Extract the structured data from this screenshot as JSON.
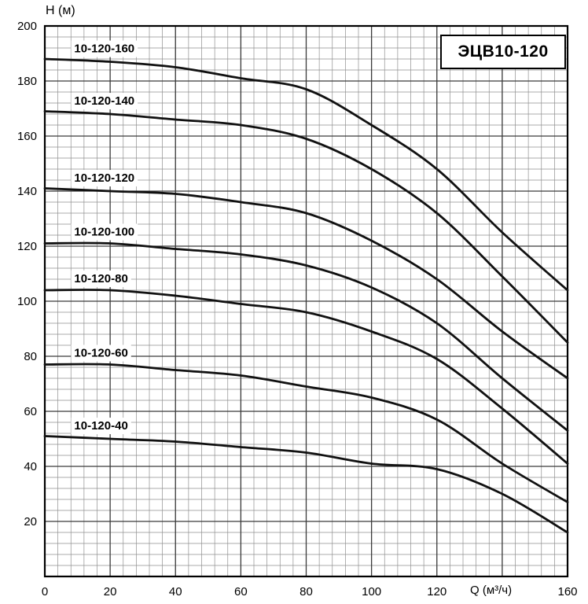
{
  "header": {
    "title_box": "ЭЦВ10-120"
  },
  "axes": {
    "y_title": "H (м)",
    "x_title": "Q (м³/ч)"
  },
  "chart_data": {
    "type": "line",
    "title": "ЭЦВ10-120",
    "xlabel": "Q (м³/ч)",
    "ylabel": "H (м)",
    "x": [
      0,
      20,
      40,
      60,
      80,
      100,
      120,
      140,
      160
    ],
    "series": [
      {
        "name": "10-120-160",
        "values": [
          188,
          187,
          185,
          181,
          177,
          164,
          148,
          125,
          104
        ]
      },
      {
        "name": "10-120-140",
        "values": [
          169,
          168,
          166,
          164,
          159,
          148,
          132,
          109,
          85
        ]
      },
      {
        "name": "10-120-120",
        "values": [
          141,
          140,
          139,
          136,
          132,
          122,
          108,
          89,
          72
        ]
      },
      {
        "name": "10-120-100",
        "values": [
          121,
          121,
          119,
          117,
          113,
          105,
          92,
          72,
          53
        ]
      },
      {
        "name": "10-120-80",
        "values": [
          104,
          104,
          102,
          99,
          96,
          89,
          79,
          61,
          41
        ]
      },
      {
        "name": "10-120-60",
        "values": [
          77,
          77,
          75,
          73,
          69,
          65,
          57,
          41,
          27
        ]
      },
      {
        "name": "10-120-40",
        "values": [
          51,
          50,
          49,
          47,
          45,
          41,
          39,
          30,
          16
        ]
      }
    ],
    "xlim": [
      0,
      160
    ],
    "ylim": [
      0,
      200
    ],
    "x_ticks": [
      0,
      20,
      40,
      60,
      80,
      100,
      120,
      160
    ],
    "y_ticks": [
      20,
      40,
      60,
      80,
      100,
      120,
      140,
      160,
      180,
      200
    ],
    "x_minor_step": 4,
    "y_minor_step": 4,
    "grid": true,
    "legend": "inline-curve-labels",
    "curve_color": "#111111",
    "minor_grid_color": "#8f8f8f",
    "major_grid_color": "#3a3a3a",
    "frame_color": "#000000",
    "label_anchor_q": 9
  }
}
